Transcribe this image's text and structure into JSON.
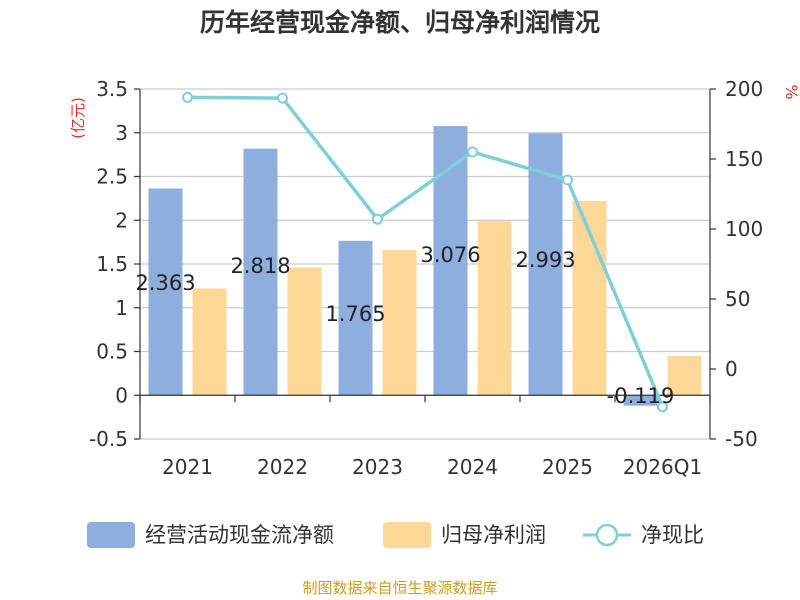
{
  "chart_data": {
    "type": "bar+line",
    "title": "历年经营现金净额、归母净利润情况",
    "categories": [
      "2021",
      "2022",
      "2023",
      "2024",
      "2025",
      "2026Q1"
    ],
    "left_axis": {
      "label": "(亿元)",
      "ylim": [
        -0.5,
        3.5
      ],
      "ticks": [
        -0.5,
        0,
        0.5,
        1,
        1.5,
        2,
        2.5,
        3,
        3.5
      ],
      "tick_labels": [
        "-0.5",
        "0",
        "0.5",
        "1",
        "1.5",
        "2",
        "2.5",
        "3",
        "3.5"
      ]
    },
    "right_axis": {
      "label": "%",
      "ylim": [
        -50,
        200
      ],
      "ticks": [
        -50,
        0,
        50,
        100,
        150,
        200
      ],
      "tick_labels": [
        "-50",
        "0",
        "50",
        "100",
        "150",
        "200"
      ]
    },
    "series": [
      {
        "name": "经营活动现金流净额",
        "kind": "bar",
        "axis": "left",
        "color": "#8eaedd",
        "values": [
          2.363,
          2.818,
          1.765,
          3.076,
          2.993,
          -0.119
        ],
        "data_labels": [
          "2.363",
          "2.818",
          "1.765",
          "3.076",
          "2.993",
          "-0.119"
        ]
      },
      {
        "name": "归母净利润",
        "kind": "bar",
        "axis": "left",
        "color": "#ffd898",
        "values": [
          1.22,
          1.46,
          1.66,
          1.99,
          2.22,
          0.45
        ]
      },
      {
        "name": "净现比",
        "kind": "line",
        "axis": "right",
        "color": "#7fd0d6",
        "values": [
          194,
          193.5,
          107,
          155,
          135,
          -27
        ]
      }
    ],
    "legend_position": "bottom"
  },
  "footer": {
    "source": "制图数据来自恒生聚源数据库"
  },
  "colors": {
    "title": "#333333",
    "axis_label": "#e0302c",
    "axis_text": "#333333",
    "grid": "#cccccc",
    "source": "#c8a024"
  }
}
